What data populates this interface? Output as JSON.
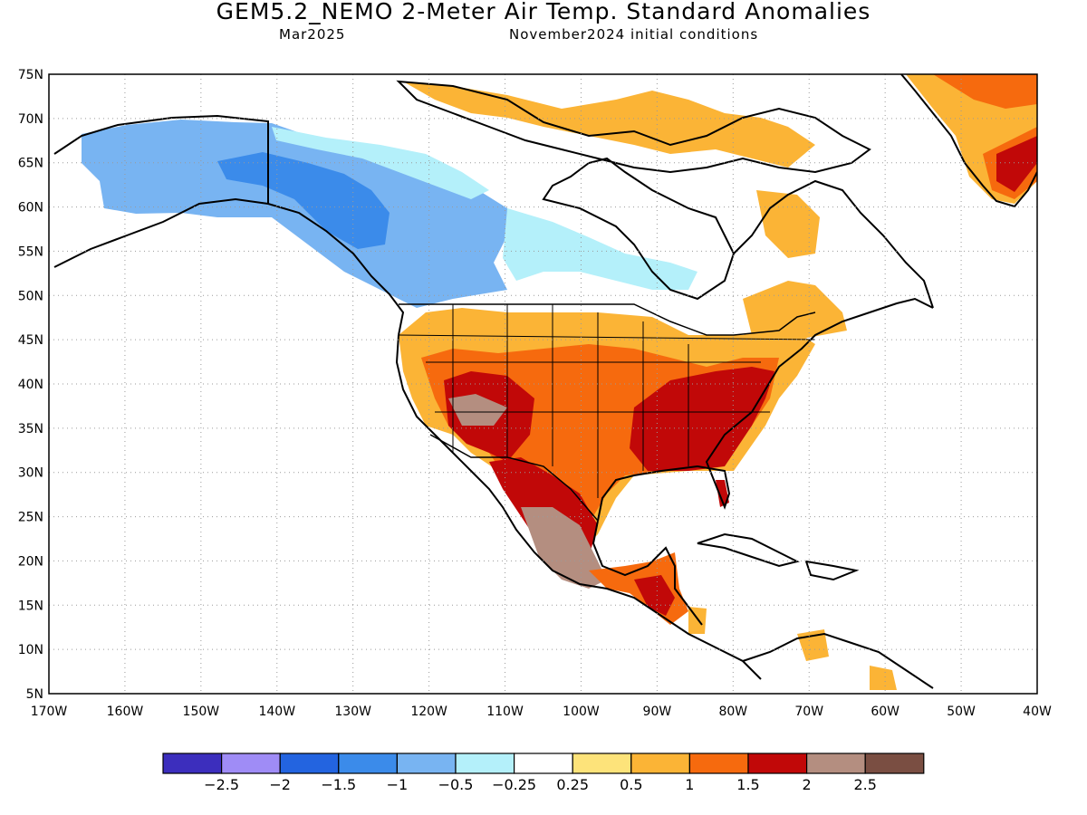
{
  "title": "GEM5.2_NEMO 2-Meter Air Temp. Standard Anomalies",
  "subtitle_left": "Mar2025",
  "subtitle_right": "November2024 initial conditions",
  "map": {
    "lon_range": [
      -170,
      -40
    ],
    "lat_range": [
      5,
      75
    ],
    "lat_labels": [
      "75N",
      "70N",
      "65N",
      "60N",
      "55N",
      "50N",
      "45N",
      "40N",
      "35N",
      "30N",
      "25N",
      "20N",
      "15N",
      "10N",
      "5N"
    ],
    "lon_labels": [
      "170W",
      "160W",
      "150W",
      "140W",
      "130W",
      "120W",
      "110W",
      "100W",
      "90W",
      "80W",
      "70W",
      "60W",
      "50W",
      "40W"
    ],
    "gridlines": "dotted"
  },
  "colorbar": {
    "colors": [
      "#3c2ebd",
      "#9f8cf6",
      "#2364e0",
      "#3b8bea",
      "#78b4f2",
      "#b4f0fa",
      "#ffffff",
      "#fde37a",
      "#fbb436",
      "#f66a0e",
      "#c10808",
      "#b48e80",
      "#7a4e42"
    ],
    "labels": [
      "−2.5",
      "−2",
      "−1.5",
      "−1",
      "−0.5",
      "−0.25",
      "0.25",
      "0.5",
      "1",
      "1.5",
      "2",
      "2.5"
    ]
  }
}
